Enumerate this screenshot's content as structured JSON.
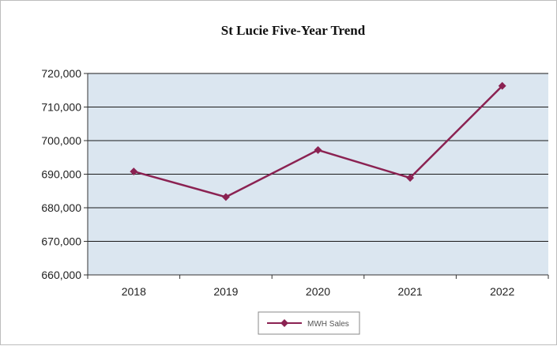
{
  "chart_data": {
    "type": "line",
    "title": "St Lucie Five-Year Trend",
    "xlabel": "",
    "ylabel": "",
    "categories": [
      "2018",
      "2019",
      "2020",
      "2021",
      "2022"
    ],
    "series": [
      {
        "name": "MWH Sales",
        "values": [
          690800,
          683200,
          697200,
          688900,
          716300
        ],
        "color": "#8b2252"
      }
    ],
    "ylim": [
      660000,
      720000
    ],
    "yticks": [
      660000,
      670000,
      680000,
      690000,
      700000,
      710000,
      720000
    ],
    "ytick_labels": [
      "660,000",
      "670,000",
      "680,000",
      "690,000",
      "700,000",
      "710,000",
      "720,000"
    ],
    "grid": true,
    "legend_position": "bottom-center",
    "plot_background": "#dbe6f0",
    "gridline_color": "#1a1a1a"
  }
}
